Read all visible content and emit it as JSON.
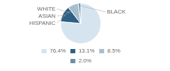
{
  "chart_data": {
    "type": "pie",
    "categories": [
      "WHITE",
      "ASIAN",
      "HISPANIC",
      "BLACK"
    ],
    "values": [
      76.4,
      13.1,
      8.5,
      2.0
    ],
    "value_labels": [
      "76.4%",
      "13.1%",
      "8.5%",
      "2.0%"
    ],
    "colors": [
      "#d6e4f0",
      "#2e6084",
      "#a8bfcf",
      "#6d8fa3"
    ],
    "legend": "bottom"
  }
}
